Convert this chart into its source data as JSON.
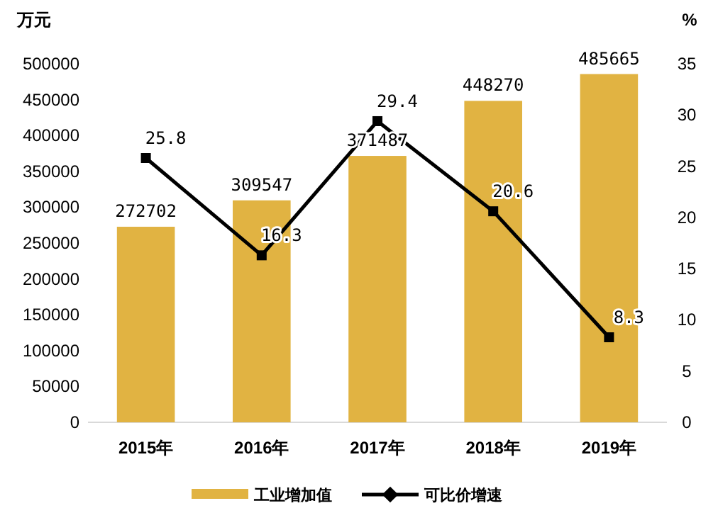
{
  "chart_data": {
    "type": "bar",
    "ylabel": "万元",
    "y2label": "%",
    "categories": [
      "2015年",
      "2016年",
      "2017年",
      "2018年",
      "2019年"
    ],
    "series": [
      {
        "name": "工业增加值",
        "color": "#e1b342",
        "values": [
          272702,
          309547,
          371487,
          448270,
          485665
        ]
      },
      {
        "name": "可比价增速",
        "type": "line",
        "axis": "y2",
        "color": "#000000",
        "marker": "square",
        "values": [
          25.8,
          16.3,
          29.4,
          20.6,
          8.3
        ]
      }
    ],
    "ylim": [
      0,
      500000
    ],
    "yticks": [
      0,
      50000,
      100000,
      150000,
      200000,
      250000,
      300000,
      350000,
      400000,
      450000,
      500000
    ],
    "y2lim": [
      0,
      35
    ],
    "y2ticks": [
      0,
      5,
      10,
      15,
      20,
      25,
      30,
      35
    ],
    "data_labels": true,
    "grid": false,
    "legend": "bottom"
  }
}
